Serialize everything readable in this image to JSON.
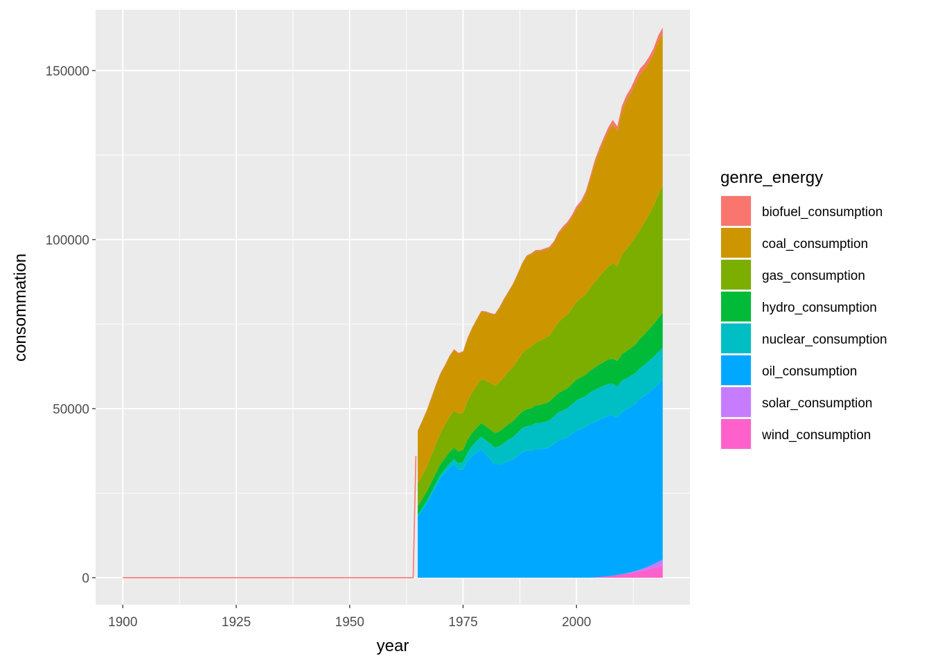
{
  "chart_data": {
    "type": "area",
    "stacked": true,
    "xlabel": "year",
    "ylabel": "consommation",
    "xlim": [
      1894,
      2025
    ],
    "ylim": [
      -8000,
      168000
    ],
    "x_ticks": [
      1900,
      1925,
      1950,
      1975,
      2000
    ],
    "y_ticks": [
      0,
      50000,
      100000,
      150000
    ],
    "grid": true,
    "legend": {
      "title": "genre_energy",
      "placement": "right"
    },
    "x": [
      1900,
      1964,
      1965,
      1966,
      1967,
      1968,
      1969,
      1970,
      1971,
      1972,
      1973,
      1974,
      1975,
      1976,
      1977,
      1978,
      1979,
      1980,
      1981,
      1982,
      1983,
      1984,
      1985,
      1986,
      1987,
      1988,
      1989,
      1990,
      1991,
      1992,
      1993,
      1994,
      1995,
      1996,
      1997,
      1998,
      1999,
      2000,
      2001,
      2002,
      2003,
      2004,
      2005,
      2006,
      2007,
      2008,
      2009,
      2010,
      2011,
      2012,
      2013,
      2014,
      2015,
      2016,
      2017,
      2018,
      2019
    ],
    "series": [
      {
        "name": "wind_consumption",
        "color": "#FF61CC",
        "values": [
          0,
          0,
          0,
          0,
          0,
          0,
          0,
          0,
          0,
          0,
          0,
          0,
          0,
          0,
          0,
          0,
          0,
          0,
          0,
          0,
          0,
          0,
          0,
          0,
          0,
          0,
          0,
          0,
          0,
          0,
          0,
          0,
          0,
          0,
          0,
          0,
          0,
          0,
          0,
          0,
          0,
          100,
          200,
          300,
          400,
          600,
          800,
          1000,
          1200,
          1400,
          1700,
          2000,
          2300,
          2600,
          2900,
          3200,
          3500
        ]
      },
      {
        "name": "solar_consumption",
        "color": "#C77CFF",
        "values": [
          0,
          0,
          0,
          0,
          0,
          0,
          0,
          0,
          0,
          0,
          0,
          0,
          0,
          0,
          0,
          0,
          0,
          0,
          0,
          0,
          0,
          0,
          0,
          0,
          0,
          0,
          0,
          0,
          0,
          0,
          0,
          0,
          0,
          0,
          0,
          0,
          0,
          0,
          0,
          0,
          0,
          0,
          0,
          0,
          0,
          0,
          0,
          0,
          100,
          200,
          300,
          400,
          500,
          800,
          1100,
          1500,
          1900
        ]
      },
      {
        "name": "oil_consumption",
        "color": "#00A9FF",
        "values": [
          0,
          0,
          18000,
          20000,
          22000,
          24500,
          27000,
          29500,
          31000,
          32500,
          33500,
          32000,
          32000,
          34500,
          36000,
          37000,
          38000,
          36500,
          35000,
          33500,
          33500,
          34000,
          34500,
          35000,
          36000,
          37000,
          37500,
          37500,
          38000,
          38000,
          38200,
          38500,
          39500,
          40500,
          41000,
          41500,
          42500,
          43500,
          44000,
          44500,
          45500,
          46000,
          46500,
          47000,
          47500,
          47500,
          46500,
          48000,
          48500,
          49000,
          49500,
          50500,
          51000,
          51500,
          52000,
          52500,
          53000
        ]
      },
      {
        "name": "nuclear_consumption",
        "color": "#00BFC4",
        "values": [
          0,
          0,
          500,
          600,
          700,
          800,
          900,
          1000,
          1100,
          1300,
          1500,
          1800,
          2200,
          2600,
          3000,
          3400,
          3700,
          4200,
          4600,
          5000,
          5400,
          5800,
          6300,
          6600,
          6900,
          7200,
          7300,
          7500,
          7700,
          7800,
          7900,
          8000,
          8200,
          8400,
          8500,
          8600,
          8800,
          9000,
          9100,
          9200,
          9300,
          9400,
          9500,
          9500,
          9400,
          9300,
          9200,
          9300,
          9200,
          9100,
          9100,
          9100,
          9200,
          9300,
          9400,
          9500,
          9600
        ]
      },
      {
        "name": "hydro_consumption",
        "color": "#00BA38",
        "values": [
          0,
          0,
          2600,
          2700,
          2800,
          2900,
          3000,
          3100,
          3200,
          3300,
          3400,
          3500,
          3600,
          3700,
          3800,
          3900,
          4000,
          4100,
          4200,
          4300,
          4400,
          4500,
          4600,
          4700,
          4800,
          4900,
          5000,
          5100,
          5200,
          5300,
          5400,
          5500,
          5600,
          5700,
          5800,
          5900,
          6000,
          6100,
          6200,
          6300,
          6400,
          6600,
          6800,
          7000,
          7200,
          7400,
          7600,
          7800,
          8000,
          8200,
          8400,
          8700,
          9000,
          9300,
          9600,
          10000,
          10300
        ]
      },
      {
        "name": "gas_consumption",
        "color": "#7CAE00",
        "values": [
          0,
          0,
          6700,
          7000,
          7400,
          7900,
          8500,
          9200,
          9900,
          10500,
          11000,
          11200,
          11000,
          11500,
          12000,
          12500,
          13000,
          13500,
          13800,
          14000,
          14500,
          15000,
          15600,
          16000,
          16500,
          17200,
          17800,
          18300,
          18700,
          19000,
          19300,
          19600,
          20200,
          21000,
          21500,
          21800,
          22300,
          23000,
          23400,
          23800,
          24500,
          25300,
          26000,
          26800,
          27500,
          28300,
          28000,
          29500,
          30200,
          31000,
          31800,
          32300,
          33000,
          34000,
          35000,
          36500,
          37800
        ]
      },
      {
        "name": "coal_consumption",
        "color": "#CD9600",
        "values": [
          0,
          0,
          15500,
          16000,
          16500,
          17000,
          17500,
          17500,
          17500,
          17800,
          18000,
          17800,
          18000,
          18500,
          19000,
          19500,
          20000,
          20300,
          20500,
          21000,
          22000,
          23000,
          23500,
          24500,
          25500,
          26500,
          27500,
          27300,
          27000,
          26500,
          26200,
          25800,
          25500,
          26000,
          26500,
          26800,
          27000,
          27500,
          28000,
          29500,
          32000,
          35000,
          37000,
          38500,
          40000,
          41000,
          40000,
          42500,
          44000,
          44500,
          45500,
          46000,
          45500,
          45000,
          45000,
          45500,
          45000
        ]
      },
      {
        "name": "biofuel_consumption",
        "color": "#F8766D",
        "values": [
          0,
          0,
          200,
          200,
          200,
          200,
          200,
          200,
          200,
          200,
          200,
          200,
          200,
          200,
          200,
          200,
          200,
          200,
          200,
          200,
          200,
          200,
          200,
          200,
          200,
          200,
          200,
          250,
          300,
          350,
          400,
          450,
          500,
          550,
          600,
          650,
          700,
          750,
          800,
          850,
          900,
          950,
          1000,
          1100,
          1200,
          1300,
          1350,
          1400,
          1450,
          1500,
          1550,
          1550,
          1550,
          1550,
          1600,
          1600,
          1650
        ]
      }
    ]
  }
}
